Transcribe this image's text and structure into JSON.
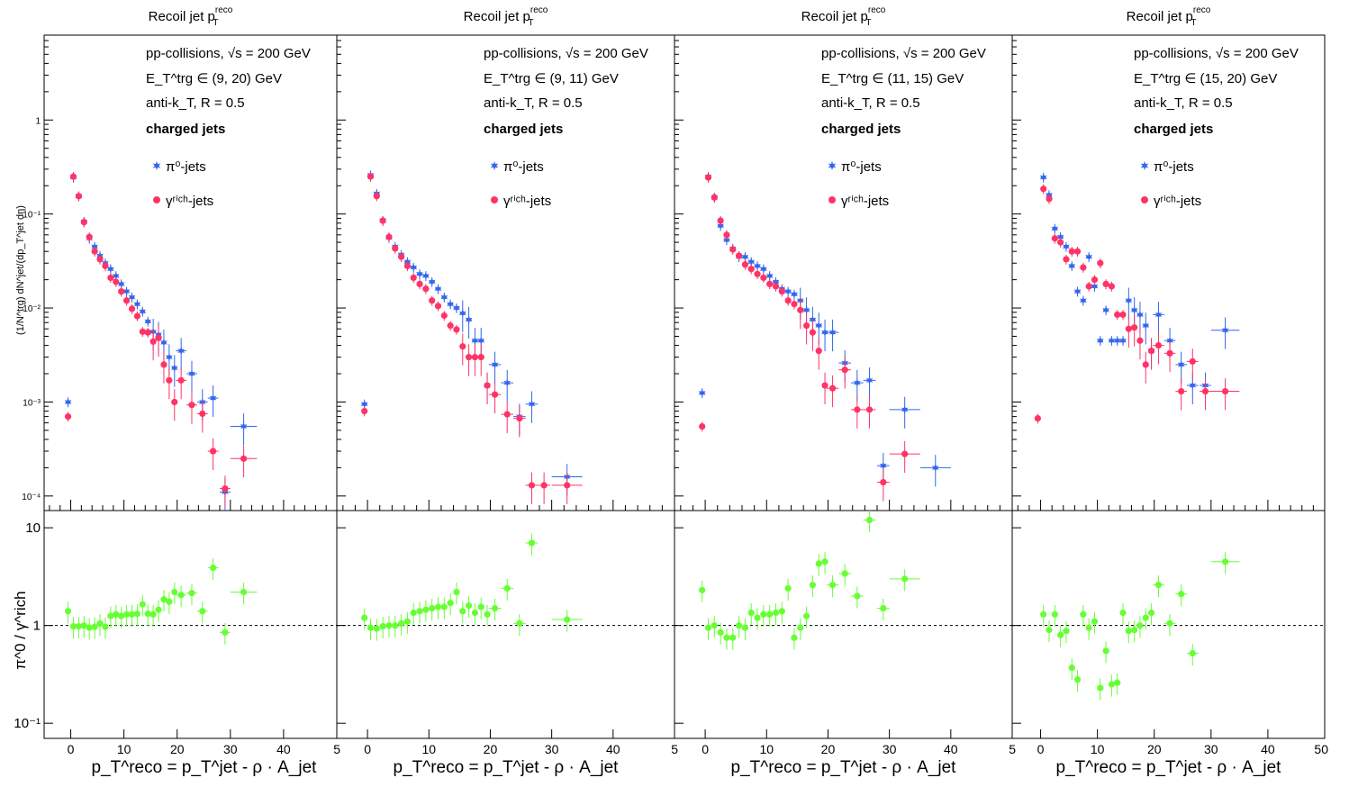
{
  "colors": {
    "pi0": "#3366ee",
    "gamma": "#ff3366",
    "ratio": "#66ff33",
    "frame": "#000000",
    "reference": "#000000"
  },
  "figure": {
    "upper_ylabel": "(1/N^trg) dN^jet/(dp_T^jet dη)",
    "lower_ylabel": "π^0 / γ^rich",
    "xlabel": "p_T^reco = p_T^jet - ρ · A_jet"
  },
  "legend": {
    "pi0_label": "π⁰-jets",
    "gamma_label": "γʳⁱᶜʰ-jets",
    "pi0_marker": "star",
    "gamma_marker": "circle"
  },
  "chart_data": [
    {
      "type": "scatter",
      "title": "Recoil jet p_T^reco",
      "annotations": [
        "pp-collisions, √s = 200 GeV",
        "E_T^trg ∈ (9, 20) GeV",
        "anti-k_T, R = 0.5",
        "charged jets"
      ],
      "xlim": [
        -5,
        50
      ],
      "ylim_upper": [
        7e-05,
        8
      ],
      "yscale_upper": "log",
      "ylim_lower": [
        0.07,
        15
      ],
      "yscale_lower": "log",
      "x_ticks": [
        "0",
        "10",
        "20",
        "30",
        "40",
        "5"
      ],
      "y_ticks_upper": [
        "10⁻⁴",
        "10⁻³",
        "10⁻²",
        "10⁻¹",
        "1"
      ],
      "y_ticks_lower": [
        "10⁻¹",
        "1",
        "10"
      ],
      "series": [
        {
          "name": "π⁰-jets",
          "x": [
            -0.5,
            0.5,
            1.5,
            2.5,
            3.5,
            4.5,
            5.5,
            6.5,
            7.5,
            8.5,
            9.5,
            10.5,
            11.5,
            12.5,
            13.5,
            14.5,
            15.5,
            16.5,
            17.5,
            18.5,
            19.5,
            20.75,
            22.75,
            24.75,
            26.75,
            29.0,
            32.5
          ],
          "y": [
            0.001,
            0.245,
            0.155,
            0.083,
            0.055,
            0.045,
            0.036,
            0.03,
            0.026,
            0.022,
            0.018,
            0.015,
            0.013,
            0.011,
            0.0092,
            0.0072,
            0.0056,
            0.0052,
            0.0043,
            0.003,
            0.0023,
            0.0035,
            0.002,
            0.001,
            0.0011,
            0.00011,
            0.00055
          ]
        },
        {
          "name": "γʳⁱᶜʰ-jets",
          "x": [
            -0.5,
            0.5,
            1.5,
            2.5,
            3.5,
            4.5,
            5.5,
            6.5,
            7.5,
            8.5,
            9.5,
            10.5,
            11.5,
            12.5,
            13.5,
            14.5,
            15.5,
            16.5,
            17.5,
            18.5,
            19.5,
            20.75,
            22.75,
            24.75,
            26.75,
            29.0,
            32.5
          ],
          "y": [
            0.0007,
            0.25,
            0.155,
            0.082,
            0.057,
            0.04,
            0.033,
            0.028,
            0.021,
            0.019,
            0.015,
            0.012,
            0.0098,
            0.0082,
            0.0056,
            0.0055,
            0.0044,
            0.0048,
            0.0025,
            0.0017,
            0.001,
            0.0017,
            0.00093,
            0.00075,
            0.0003,
            0.00012,
            0.00025
          ]
        },
        {
          "name": "",
          "panel": "ratio",
          "x": [
            -0.5,
            0.5,
            1.5,
            2.5,
            3.5,
            4.5,
            5.5,
            6.5,
            7.5,
            8.5,
            9.5,
            10.5,
            11.5,
            12.5,
            13.5,
            14.5,
            15.5,
            16.5,
            17.5,
            18.5,
            19.5,
            20.75,
            22.75,
            24.75,
            26.75,
            29.0,
            32.5
          ],
          "y": [
            1.4,
            0.98,
            0.98,
            1.0,
            0.95,
            0.97,
            1.05,
            0.97,
            1.25,
            1.3,
            1.25,
            1.3,
            1.3,
            1.32,
            1.65,
            1.32,
            1.3,
            1.45,
            1.85,
            1.75,
            2.2,
            2.05,
            2.15,
            1.4,
            3.9,
            0.85,
            2.2
          ]
        }
      ]
    },
    {
      "type": "scatter",
      "title": "Recoil jet p_T^reco",
      "annotations": [
        "pp-collisions, √s = 200 GeV",
        "E_T^trg ∈ (9, 11) GeV",
        "anti-k_T, R = 0.5",
        "charged jets"
      ],
      "xlim": [
        -5,
        50
      ],
      "ylim_upper": [
        7e-05,
        8
      ],
      "yscale_upper": "log",
      "ylim_lower": [
        0.07,
        15
      ],
      "yscale_lower": "log",
      "x_ticks": [
        "0",
        "10",
        "20",
        "30",
        "40",
        "5"
      ],
      "series": [
        {
          "name": "π⁰-jets",
          "x": [
            -0.5,
            0.5,
            1.5,
            2.5,
            3.5,
            4.5,
            5.5,
            6.5,
            7.5,
            8.5,
            9.5,
            10.5,
            11.5,
            12.5,
            13.5,
            14.5,
            15.5,
            16.5,
            17.5,
            18.5,
            19.5,
            20.75,
            22.75,
            24.75,
            26.75,
            32.5
          ],
          "y": [
            0.00095,
            0.26,
            0.165,
            0.085,
            0.056,
            0.045,
            0.037,
            0.031,
            0.027,
            0.023,
            0.022,
            0.019,
            0.016,
            0.013,
            0.011,
            0.01,
            0.0088,
            0.0075,
            0.0045,
            0.0045,
            0.0015,
            0.0025,
            0.0016,
            0.0007,
            0.00095,
            0.00016
          ]
        },
        {
          "name": "γʳⁱᶜʰ-jets",
          "x": [
            -0.5,
            0.5,
            1.5,
            2.5,
            3.5,
            4.5,
            5.5,
            6.5,
            7.5,
            8.5,
            9.5,
            10.5,
            11.5,
            12.5,
            13.5,
            14.5,
            15.5,
            16.5,
            17.5,
            18.5,
            19.5,
            20.75,
            22.75,
            24.75,
            26.75,
            28.75,
            32.5
          ],
          "y": [
            0.0008,
            0.25,
            0.155,
            0.085,
            0.057,
            0.043,
            0.035,
            0.028,
            0.021,
            0.018,
            0.016,
            0.012,
            0.0105,
            0.0083,
            0.0065,
            0.0059,
            0.0039,
            0.003,
            0.003,
            0.003,
            0.0015,
            0.0012,
            0.00074,
            0.00067,
            0.00013,
            0.00013,
            0.00013
          ]
        },
        {
          "name": "",
          "panel": "ratio",
          "x": [
            -0.5,
            0.5,
            1.5,
            2.5,
            3.5,
            4.5,
            5.5,
            6.5,
            7.5,
            8.5,
            9.5,
            10.5,
            11.5,
            12.5,
            13.5,
            14.5,
            15.5,
            16.5,
            17.5,
            18.5,
            19.5,
            20.75,
            22.75,
            24.75,
            26.75,
            32.5
          ],
          "y": [
            1.2,
            0.95,
            0.93,
            0.98,
            1.0,
            1.0,
            1.05,
            1.1,
            1.35,
            1.4,
            1.45,
            1.5,
            1.55,
            1.55,
            1.7,
            2.2,
            1.4,
            1.6,
            1.35,
            1.55,
            1.3,
            1.5,
            2.4,
            1.05,
            7.0,
            1.15
          ]
        }
      ]
    },
    {
      "type": "scatter",
      "title": "Recoil jet p_T^reco",
      "annotations": [
        "pp-collisions, √s = 200 GeV",
        "E_T^trg ∈ (11, 15) GeV",
        "anti-k_T, R = 0.5",
        "charged jets"
      ],
      "xlim": [
        -5,
        50
      ],
      "ylim_upper": [
        7e-05,
        8
      ],
      "yscale_upper": "log",
      "ylim_lower": [
        0.07,
        15
      ],
      "yscale_lower": "log",
      "x_ticks": [
        "0",
        "10",
        "20",
        "30",
        "40",
        "5"
      ],
      "series": [
        {
          "name": "π⁰-jets",
          "x": [
            -0.5,
            0.5,
            1.5,
            2.5,
            3.5,
            4.5,
            5.5,
            6.5,
            7.5,
            8.5,
            9.5,
            10.5,
            11.5,
            12.5,
            13.5,
            14.5,
            15.5,
            16.5,
            17.5,
            18.5,
            19.5,
            20.75,
            22.75,
            24.75,
            26.75,
            29.0,
            32.5,
            37.5
          ],
          "y": [
            0.00125,
            0.25,
            0.15,
            0.075,
            0.053,
            0.043,
            0.035,
            0.035,
            0.031,
            0.028,
            0.026,
            0.022,
            0.019,
            0.016,
            0.015,
            0.014,
            0.012,
            0.0095,
            0.0075,
            0.0065,
            0.0055,
            0.0055,
            0.0026,
            0.0016,
            0.0017,
            0.00021,
            0.00083,
            0.0002
          ]
        },
        {
          "name": "γʳⁱᶜʰ-jets",
          "x": [
            -0.5,
            0.5,
            1.5,
            2.5,
            3.5,
            4.5,
            5.5,
            6.5,
            7.5,
            8.5,
            9.5,
            10.5,
            11.5,
            12.5,
            13.5,
            14.5,
            15.5,
            16.5,
            17.5,
            18.5,
            19.5,
            20.75,
            22.75,
            24.75,
            26.75,
            29.0,
            32.5
          ],
          "y": [
            0.00055,
            0.245,
            0.15,
            0.085,
            0.06,
            0.042,
            0.036,
            0.029,
            0.026,
            0.023,
            0.021,
            0.018,
            0.017,
            0.015,
            0.012,
            0.011,
            0.0095,
            0.0065,
            0.0055,
            0.0035,
            0.0015,
            0.0014,
            0.0022,
            0.00083,
            0.00083,
            0.00014,
            0.00028
          ]
        },
        {
          "name": "",
          "panel": "ratio",
          "x": [
            -0.5,
            0.5,
            1.5,
            2.5,
            3.5,
            4.5,
            5.5,
            6.5,
            7.5,
            8.5,
            9.5,
            10.5,
            11.5,
            12.5,
            13.5,
            14.5,
            15.5,
            16.5,
            17.5,
            18.5,
            19.5,
            20.75,
            22.75,
            24.75,
            26.75,
            29.0,
            32.5
          ],
          "y": [
            2.3,
            0.95,
            1.0,
            0.85,
            0.75,
            0.75,
            1.0,
            0.95,
            1.35,
            1.2,
            1.3,
            1.3,
            1.35,
            1.4,
            2.4,
            0.75,
            0.95,
            1.25,
            2.6,
            4.3,
            4.5,
            2.6,
            3.4,
            2.0,
            12.0,
            1.5,
            3.0
          ]
        }
      ]
    },
    {
      "type": "scatter",
      "title": "Recoil jet p_T^reco",
      "annotations": [
        "pp-collisions, √s = 200 GeV",
        "E_T^trg ∈ (15, 20) GeV",
        "anti-k_T, R = 0.5",
        "charged jets"
      ],
      "xlim": [
        -5,
        50
      ],
      "ylim_upper": [
        7e-05,
        8
      ],
      "yscale_upper": "log",
      "ylim_lower": [
        0.07,
        15
      ],
      "yscale_lower": "log",
      "x_ticks": [
        "0",
        "10",
        "20",
        "30",
        "40",
        "50"
      ],
      "series": [
        {
          "name": "π⁰-jets",
          "x": [
            0.5,
            1.5,
            2.5,
            3.5,
            4.5,
            5.5,
            6.5,
            7.5,
            8.5,
            9.5,
            10.5,
            11.5,
            12.5,
            13.5,
            14.5,
            15.5,
            16.5,
            17.5,
            18.5,
            19.5,
            20.75,
            22.75,
            24.75,
            26.75,
            29.0,
            32.5
          ],
          "y": [
            0.245,
            0.16,
            0.07,
            0.057,
            0.045,
            0.028,
            0.015,
            0.012,
            0.035,
            0.017,
            0.0045,
            0.0095,
            0.0045,
            0.0045,
            0.0045,
            0.012,
            0.0095,
            0.0085,
            0.0065,
            0.0035,
            0.0085,
            0.0045,
            0.0025,
            0.0015,
            0.0015,
            0.0058
          ]
        },
        {
          "name": "γʳⁱᶜʰ-jets",
          "x": [
            -0.5,
            0.5,
            1.5,
            2.5,
            3.5,
            4.5,
            5.5,
            6.5,
            7.5,
            8.5,
            9.5,
            10.5,
            11.5,
            12.5,
            13.5,
            14.5,
            15.5,
            16.5,
            17.5,
            18.5,
            19.5,
            20.75,
            22.75,
            24.75,
            26.75,
            29.0,
            32.5
          ],
          "y": [
            0.00067,
            0.185,
            0.145,
            0.055,
            0.05,
            0.033,
            0.04,
            0.04,
            0.027,
            0.017,
            0.02,
            0.03,
            0.018,
            0.017,
            0.0085,
            0.0085,
            0.006,
            0.0062,
            0.0045,
            0.0025,
            0.0035,
            0.004,
            0.0033,
            0.0013,
            0.0027,
            0.0013,
            0.0013
          ]
        },
        {
          "name": "",
          "panel": "ratio",
          "x": [
            0.5,
            1.5,
            2.5,
            3.5,
            4.5,
            5.5,
            6.5,
            7.5,
            8.5,
            9.5,
            10.5,
            11.5,
            12.5,
            13.5,
            14.5,
            15.5,
            16.5,
            17.5,
            18.5,
            19.5,
            20.75,
            22.75,
            24.75,
            26.75,
            32.5
          ],
          "y": [
            1.3,
            0.9,
            1.3,
            0.8,
            0.88,
            0.37,
            0.28,
            1.3,
            0.95,
            1.1,
            0.23,
            0.55,
            0.25,
            0.26,
            1.35,
            0.88,
            0.9,
            1.0,
            1.2,
            1.35,
            2.6,
            1.05,
            2.1,
            0.52,
            4.5
          ]
        }
      ]
    }
  ]
}
